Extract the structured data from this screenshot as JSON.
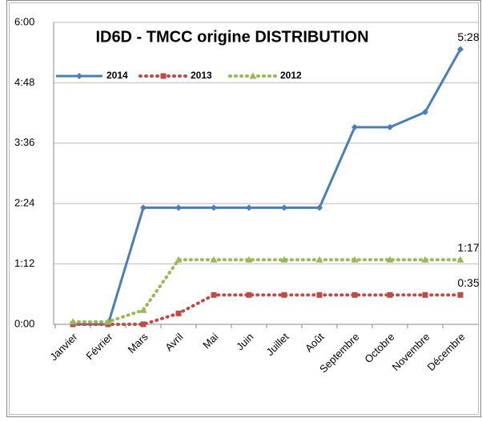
{
  "chart_data": {
    "type": "line",
    "title": "ID6D - TMCC origine DISTRIBUTION",
    "categories": [
      "Janvier",
      "Février",
      "Mars",
      "Avril",
      "Mai",
      "Juin",
      "Juillet",
      "Août",
      "Septembre",
      "Octobre",
      "Novembre",
      "Décembre"
    ],
    "series": [
      {
        "name": "2014",
        "color": "#4a7ebb",
        "dash": "solid",
        "marker": "diamond",
        "values": [
          0,
          0,
          139,
          139,
          139,
          139,
          139,
          139,
          235,
          235,
          253,
          328
        ],
        "value_labels": [
          null,
          null,
          null,
          null,
          null,
          null,
          null,
          null,
          null,
          null,
          null,
          "5:28"
        ]
      },
      {
        "name": "2013",
        "color": "#be4b48",
        "dash": "dotted",
        "marker": "square",
        "values": [
          0,
          0,
          0,
          13,
          35,
          35,
          35,
          35,
          35,
          35,
          35,
          35
        ],
        "value_labels": [
          null,
          null,
          null,
          null,
          null,
          null,
          null,
          null,
          null,
          null,
          null,
          "0:35"
        ]
      },
      {
        "name": "2012",
        "color": "#98b954",
        "dash": "dotted",
        "marker": "triangle",
        "values": [
          3,
          3,
          17,
          77,
          77,
          77,
          77,
          77,
          77,
          77,
          77,
          77
        ],
        "value_labels": [
          null,
          null,
          null,
          null,
          null,
          null,
          null,
          null,
          null,
          null,
          null,
          "1:17"
        ]
      }
    ],
    "ylim": [
      0,
      360
    ],
    "yticks": [
      {
        "value": 0,
        "label": "0:00"
      },
      {
        "value": 72,
        "label": "1:12"
      },
      {
        "value": 144,
        "label": "2:24"
      },
      {
        "value": 216,
        "label": "3:36"
      },
      {
        "value": 288,
        "label": "4:48"
      },
      {
        "value": 360,
        "label": "6:00"
      }
    ],
    "grid": true
  }
}
